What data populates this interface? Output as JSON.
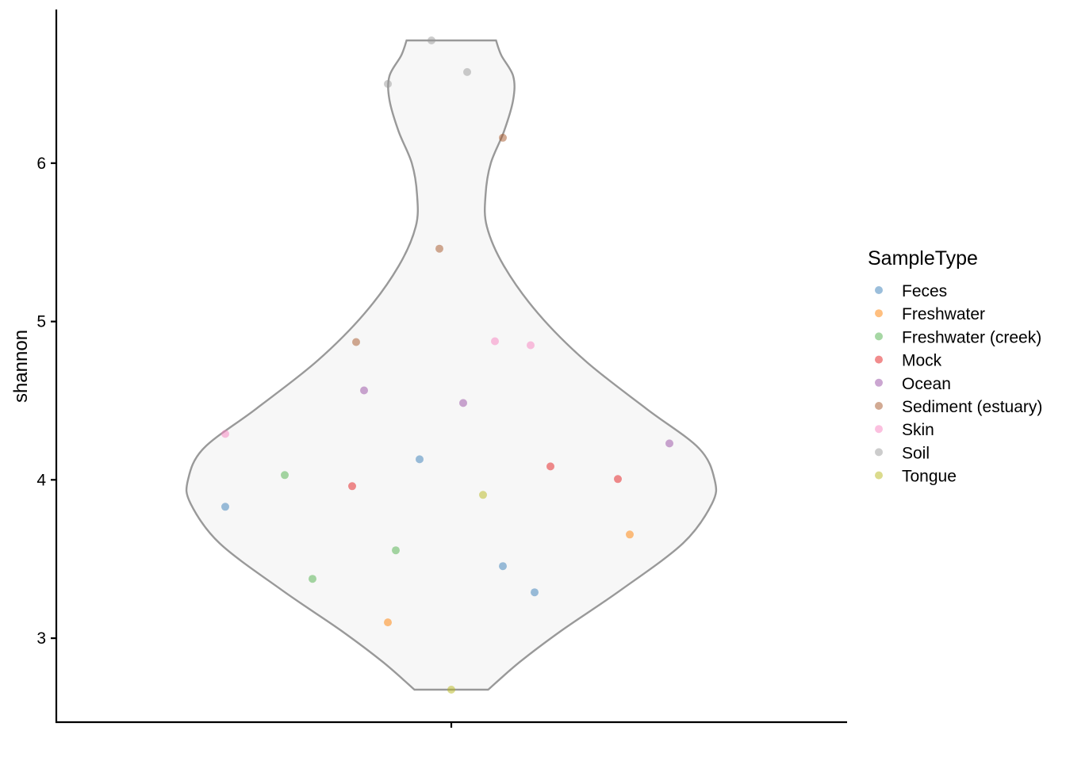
{
  "chart_data": {
    "type": "scatter",
    "subtype": "violin with jittered points",
    "title": "",
    "xlabel": "",
    "ylabel": "shannon",
    "ylim": [
      2.47,
      6.97
    ],
    "y_ticks": [
      3,
      4,
      5,
      6
    ],
    "grid": false,
    "legend": {
      "title": "SampleType",
      "position": "right",
      "entries": [
        {
          "name": "Feces",
          "color": "#377eb8"
        },
        {
          "name": "Freshwater",
          "color": "#ff7f00"
        },
        {
          "name": "Freshwater (creek)",
          "color": "#4daf4a"
        },
        {
          "name": "Mock",
          "color": "#e41a1c"
        },
        {
          "name": "Ocean",
          "color": "#984ea3"
        },
        {
          "name": "Sediment (estuary)",
          "color": "#a65628"
        },
        {
          "name": "Skin",
          "color": "#f781bf"
        },
        {
          "name": "Soil",
          "color": "#999999"
        },
        {
          "name": "Tongue",
          "color": "#b8b81c"
        }
      ]
    },
    "violin": {
      "fill": "#f7f7f7",
      "stroke": "#999999",
      "profile": [
        {
          "y": 2.675,
          "w": 0.14
        },
        {
          "y": 2.85,
          "w": 0.26
        },
        {
          "y": 3.05,
          "w": 0.42
        },
        {
          "y": 3.3,
          "w": 0.64
        },
        {
          "y": 3.6,
          "w": 0.88
        },
        {
          "y": 3.85,
          "w": 0.99
        },
        {
          "y": 4.0,
          "w": 1.0
        },
        {
          "y": 4.2,
          "w": 0.94
        },
        {
          "y": 4.45,
          "w": 0.74
        },
        {
          "y": 4.75,
          "w": 0.51
        },
        {
          "y": 5.05,
          "w": 0.33
        },
        {
          "y": 5.35,
          "w": 0.2
        },
        {
          "y": 5.6,
          "w": 0.135
        },
        {
          "y": 5.8,
          "w": 0.13
        },
        {
          "y": 6.0,
          "w": 0.15
        },
        {
          "y": 6.2,
          "w": 0.2
        },
        {
          "y": 6.4,
          "w": 0.235
        },
        {
          "y": 6.55,
          "w": 0.235
        },
        {
          "y": 6.68,
          "w": 0.19
        },
        {
          "y": 6.775,
          "w": 0.17
        }
      ]
    },
    "points": [
      {
        "group": "Soil",
        "jitter": -0.05,
        "y": 6.775
      },
      {
        "group": "Soil",
        "jitter": 0.04,
        "y": 6.575
      },
      {
        "group": "Soil",
        "jitter": -0.16,
        "y": 6.5
      },
      {
        "group": "Sediment (estuary)",
        "jitter": 0.13,
        "y": 6.16
      },
      {
        "group": "Sediment (estuary)",
        "jitter": -0.03,
        "y": 5.46
      },
      {
        "group": "Sediment (estuary)",
        "jitter": -0.24,
        "y": 4.87
      },
      {
        "group": "Skin",
        "jitter": 0.11,
        "y": 4.875
      },
      {
        "group": "Skin",
        "jitter": 0.2,
        "y": 4.85
      },
      {
        "group": "Skin",
        "jitter": -0.57,
        "y": 4.29
      },
      {
        "group": "Ocean",
        "jitter": -0.22,
        "y": 4.565
      },
      {
        "group": "Ocean",
        "jitter": 0.03,
        "y": 4.485
      },
      {
        "group": "Ocean",
        "jitter": 0.55,
        "y": 4.23
      },
      {
        "group": "Feces",
        "jitter": -0.08,
        "y": 4.13
      },
      {
        "group": "Feces",
        "jitter": -0.57,
        "y": 3.83
      },
      {
        "group": "Feces",
        "jitter": 0.13,
        "y": 3.455
      },
      {
        "group": "Feces",
        "jitter": 0.21,
        "y": 3.29
      },
      {
        "group": "Mock",
        "jitter": 0.25,
        "y": 4.085
      },
      {
        "group": "Mock",
        "jitter": 0.42,
        "y": 4.005
      },
      {
        "group": "Mock",
        "jitter": -0.25,
        "y": 3.96
      },
      {
        "group": "Freshwater (creek)",
        "jitter": -0.42,
        "y": 4.03
      },
      {
        "group": "Freshwater (creek)",
        "jitter": -0.14,
        "y": 3.555
      },
      {
        "group": "Freshwater (creek)",
        "jitter": -0.35,
        "y": 3.375
      },
      {
        "group": "Tongue",
        "jitter": 0.08,
        "y": 3.905
      },
      {
        "group": "Tongue",
        "jitter": 0.0,
        "y": 2.675
      },
      {
        "group": "Freshwater",
        "jitter": 0.45,
        "y": 3.655
      },
      {
        "group": "Freshwater",
        "jitter": -0.16,
        "y": 3.1
      }
    ]
  }
}
